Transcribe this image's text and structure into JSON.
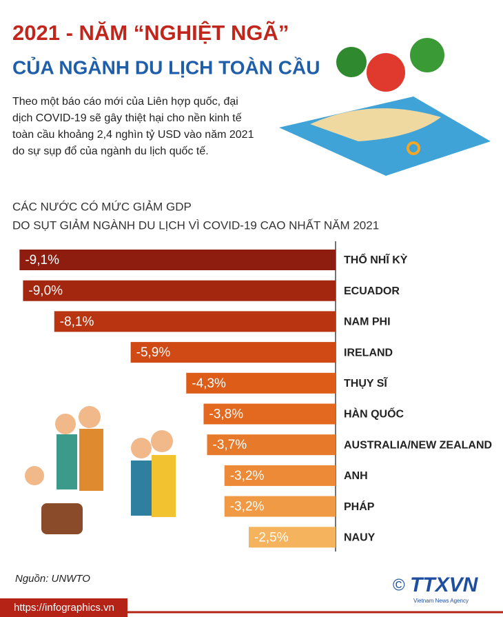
{
  "header": {
    "title": "2021 - NĂM “NGHIỆT NGÃ”",
    "subtitle": "CỦA NGÀNH DU LỊCH TOÀN CẦU",
    "intro": "Theo một báo cáo mới của Liên hợp quốc, đại dịch COVID-19 sẽ gây thiệt hại cho nền kinh tế toàn cầu khoảng 2,4 nghìn tỷ USD vào năm 2021 do sự sụp đổ của ngành du lịch quốc tế."
  },
  "chart_data": {
    "type": "bar",
    "orientation": "horizontal",
    "title": "CÁC NƯỚC CÓ MỨC GIẢM GDP",
    "subtitle": "DO SỤT GIẢM NGÀNH DU LỊCH VÌ COVID-19 CAO NHẤT NĂM 2021",
    "categories": [
      "THỔ NHĨ KỲ",
      "ECUADOR",
      "NAM PHI",
      "IRELAND",
      "THỤY SĨ",
      "HÀN QUỐC",
      "AUSTRALIA/NEW ZEALAND",
      "ANH",
      "PHÁP",
      "NAUY"
    ],
    "values": [
      -9.1,
      -9.0,
      -8.1,
      -5.9,
      -4.3,
      -3.8,
      -3.7,
      -3.2,
      -3.2,
      -2.5
    ],
    "value_labels": [
      "-9,1%",
      "-9,0%",
      "-8,1%",
      "-5,9%",
      "-4,3%",
      "-3,8%",
      "-3,7%",
      "-3,2%",
      "-3,2%",
      "-2,5%"
    ],
    "colors": [
      "#8e1c0f",
      "#a3260f",
      "#b93511",
      "#cf4a14",
      "#dc5c18",
      "#e2691f",
      "#e77a2a",
      "#ec8a37",
      "#f09a45",
      "#f5b35d"
    ],
    "xlim": [
      -10,
      0
    ]
  },
  "footer": {
    "source": "Nguồn: UNWTO",
    "url": "https://infographics.vn",
    "copyright": "©",
    "logo": "TTXVN",
    "agency": "Vietnam News Agency"
  }
}
